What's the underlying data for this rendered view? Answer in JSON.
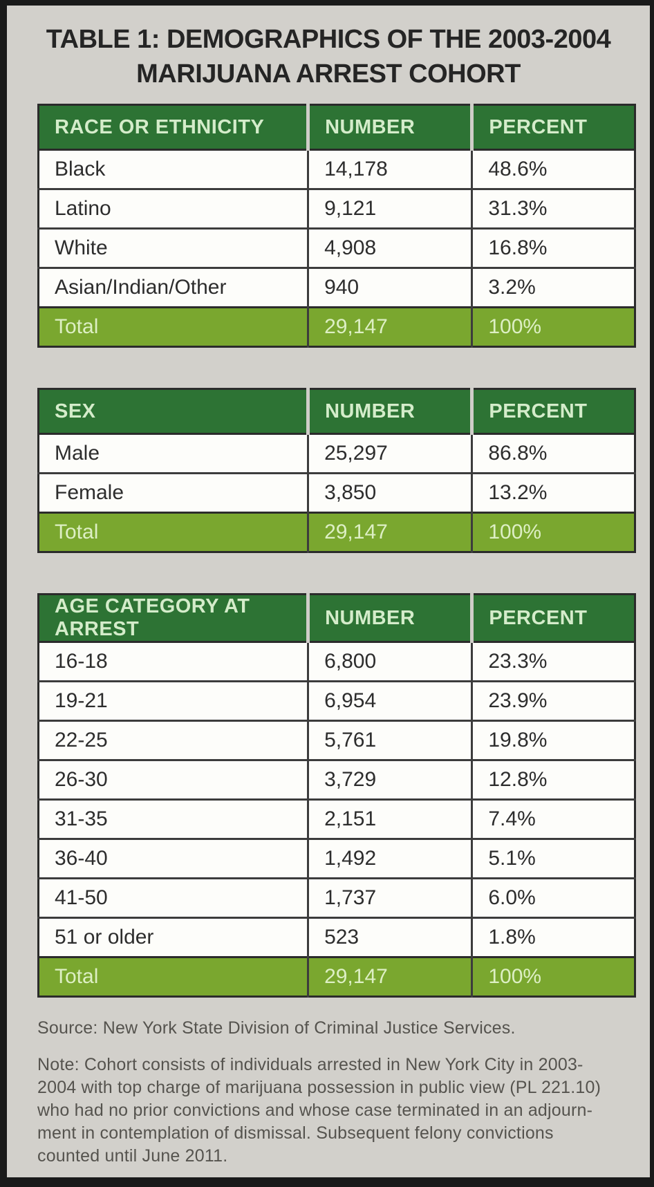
{
  "title": {
    "line1": "TABLE 1: DEMOGRAPHICS OF THE 2003-2004",
    "line2": "MARIJUANA ARREST COHORT"
  },
  "tables": [
    {
      "headers": [
        "RACE OR ETHNICITY",
        "NUMBER",
        "PERCENT"
      ],
      "rows": [
        [
          "Black",
          "14,178",
          "48.6%"
        ],
        [
          "Latino",
          "9,121",
          "31.3%"
        ],
        [
          "White",
          "4,908",
          "16.8%"
        ],
        [
          "Asian/Indian/Other",
          "940",
          "3.2%"
        ]
      ],
      "total": [
        "Total",
        "29,147",
        "100%"
      ]
    },
    {
      "headers": [
        "SEX",
        "NUMBER",
        "PERCENT"
      ],
      "rows": [
        [
          "Male",
          "25,297",
          "86.8%"
        ],
        [
          "Female",
          "3,850",
          "13.2%"
        ]
      ],
      "total": [
        "Total",
        "29,147",
        "100%"
      ]
    },
    {
      "headers": [
        "AGE CATEGORY AT ARREST",
        "NUMBER",
        "PERCENT"
      ],
      "rows": [
        [
          "16-18",
          "6,800",
          "23.3%"
        ],
        [
          "19-21",
          "6,954",
          "23.9%"
        ],
        [
          "22-25",
          "5,761",
          "19.8%"
        ],
        [
          "26-30",
          "3,729",
          "12.8%"
        ],
        [
          "31-35",
          "2,151",
          "7.4%"
        ],
        [
          "36-40",
          "1,492",
          "5.1%"
        ],
        [
          "41-50",
          "1,737",
          "6.0%"
        ],
        [
          "51 or older",
          "523",
          "1.8%"
        ]
      ],
      "total": [
        "Total",
        "29,147",
        "100%"
      ]
    }
  ],
  "footer": {
    "source": "Source: New York State Division of Criminal Justice Services.",
    "note_lines": [
      "Note: Cohort consists of individuals arrested in New York City in 2003-",
      "2004 with top charge of marijuana possession in public view (PL 221.10)",
      "who had no prior convictions and whose case terminated in an adjourn-",
      "ment in contemplation of dismissal. Subsequent felony convictions",
      "counted until June 2011."
    ]
  },
  "colors": {
    "header_bg": "#2d7334",
    "header_text": "#d4ecca",
    "total_bg": "#7aa72f",
    "total_text": "#ddefc4",
    "row_bg": "#fdfdfa",
    "body_text": "#2d2d2d",
    "grid_line": "#3c3c3c",
    "page_bg": "#d2d0cb",
    "frame": "#1a1a1a",
    "footer_text": "#55534e"
  },
  "chart_data": [
    {
      "type": "table",
      "title": "Race or Ethnicity",
      "columns": [
        "RACE OR ETHNICITY",
        "NUMBER",
        "PERCENT"
      ],
      "rows": [
        [
          "Black",
          14178,
          48.6
        ],
        [
          "Latino",
          9121,
          31.3
        ],
        [
          "White",
          4908,
          16.8
        ],
        [
          "Asian/Indian/Other",
          940,
          3.2
        ],
        [
          "Total",
          29147,
          100
        ]
      ]
    },
    {
      "type": "table",
      "title": "Sex",
      "columns": [
        "SEX",
        "NUMBER",
        "PERCENT"
      ],
      "rows": [
        [
          "Male",
          25297,
          86.8
        ],
        [
          "Female",
          3850,
          13.2
        ],
        [
          "Total",
          29147,
          100
        ]
      ]
    },
    {
      "type": "table",
      "title": "Age Category at Arrest",
      "columns": [
        "AGE CATEGORY AT ARREST",
        "NUMBER",
        "PERCENT"
      ],
      "rows": [
        [
          "16-18",
          6800,
          23.3
        ],
        [
          "19-21",
          6954,
          23.9
        ],
        [
          "22-25",
          5761,
          19.8
        ],
        [
          "26-30",
          3729,
          12.8
        ],
        [
          "31-35",
          2151,
          7.4
        ],
        [
          "36-40",
          1492,
          5.1
        ],
        [
          "41-50",
          1737,
          6.0
        ],
        [
          "51 or older",
          523,
          1.8
        ],
        [
          "Total",
          29147,
          100
        ]
      ]
    }
  ]
}
